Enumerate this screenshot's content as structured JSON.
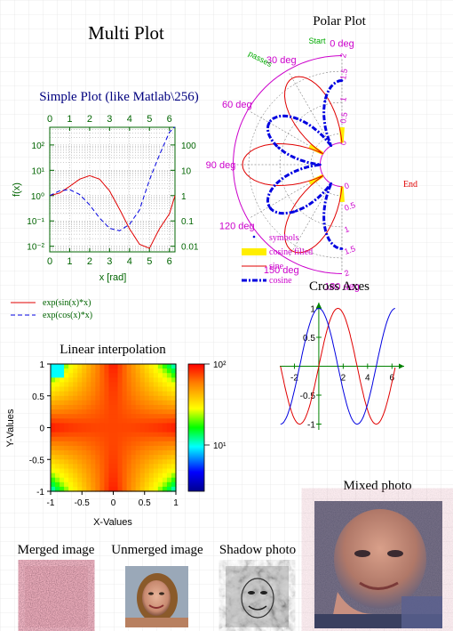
{
  "page": {
    "title": "Multi Plot"
  },
  "colors": {
    "green": "#006400",
    "magenta": "#cc00cc",
    "red": "#e00000",
    "blue": "#0000e0",
    "navy": "#00007f",
    "yellow": "#ffee00",
    "grid": "#d8d8d8"
  },
  "chart_data": [
    {
      "id": "simple",
      "type": "line",
      "title": "Simple Plot (like Matlab\\256)",
      "xlabel": "x [rad]",
      "ylabel": "f(x)",
      "xlim": [
        0,
        6.28
      ],
      "ylim": [
        0.006,
        500
      ],
      "yscale": "log",
      "x_ticks": [
        "0",
        "1",
        "2",
        "3",
        "4",
        "5",
        "6"
      ],
      "y_ticks_left": [
        "10²",
        "10¹",
        "10⁰",
        "10⁻¹",
        "10⁻²"
      ],
      "y_ticks_right": [
        "100",
        "10",
        "1",
        "0.1",
        "0.01"
      ],
      "grid": true,
      "legend_position": "bottom-left",
      "series": [
        {
          "name": "exp(sin(x)*x)",
          "style": "solid",
          "color": "#e00000",
          "x": [
            0,
            0.5,
            1,
            1.5,
            2,
            2.5,
            3,
            3.5,
            4,
            4.5,
            5,
            5.5,
            6,
            6.28
          ],
          "y": [
            1,
            1.27,
            2.32,
            4.46,
            6.16,
            4.46,
            1.53,
            0.29,
            0.049,
            0.012,
            0.0083,
            0.049,
            0.19,
            1.0
          ]
        },
        {
          "name": "exp(cos(x)*x)",
          "style": "dashed",
          "color": "#0000e0",
          "x": [
            0,
            0.5,
            1,
            1.5,
            2,
            2.5,
            3,
            3.5,
            4,
            4.5,
            5,
            5.5,
            6,
            6.28
          ],
          "y": [
            1,
            1.55,
            1.72,
            1.11,
            0.43,
            0.13,
            0.051,
            0.041,
            0.073,
            0.27,
            4.14,
            40.6,
            317,
            534
          ]
        }
      ]
    },
    {
      "id": "polar",
      "type": "line",
      "title": "Polar Plot",
      "angle_labels": [
        "0 deg",
        "30 deg",
        "60 deg",
        "90 deg",
        "120 deg",
        "150 deg",
        "180 deg"
      ],
      "radial_ticks": [
        "0",
        "0.5",
        "1",
        "1.5",
        "2"
      ],
      "arc_label_start": "Start",
      "arc_label_end": "End",
      "arc_label_passes": "passes",
      "legend_position": "bottom-left",
      "series": [
        {
          "name": "symbols",
          "color": "#0000e0"
        },
        {
          "name": "cosine filled",
          "color": "#ffee00"
        },
        {
          "name": "sine",
          "color": "#e00000"
        },
        {
          "name": "cosine",
          "color": "#0000e0"
        }
      ]
    },
    {
      "id": "cross",
      "type": "line",
      "title": "Cross Axes",
      "xlim": [
        -3.2,
        7
      ],
      "ylim": [
        -1.1,
        1.1
      ],
      "x_ticks": [
        "-2",
        "2",
        "4",
        "6"
      ],
      "y_ticks": [
        "1",
        "0.5",
        "-0.5",
        "-1"
      ],
      "series": [
        {
          "name": "sin",
          "color": "#e00000",
          "fn": "sin"
        },
        {
          "name": "cos",
          "color": "#0000e0",
          "fn": "cos"
        }
      ]
    },
    {
      "id": "interp",
      "type": "heatmap",
      "title": "Linear interpolation",
      "xlabel": "X-Values",
      "ylabel": "Y-Values",
      "xlim": [
        -1,
        1
      ],
      "ylim": [
        -1,
        1
      ],
      "x_ticks": [
        "-1",
        "-0.5",
        "0",
        "0.5",
        "1"
      ],
      "y_ticks": [
        "1",
        "0.5",
        "0",
        "-0.5",
        "-1"
      ],
      "colorbar_ticks": [
        "10²",
        "10¹"
      ]
    }
  ],
  "images": {
    "merged": "Merged image",
    "unmerged": "Unmerged image",
    "shadow": "Shadow photo",
    "mixed": "Mixed photo"
  }
}
